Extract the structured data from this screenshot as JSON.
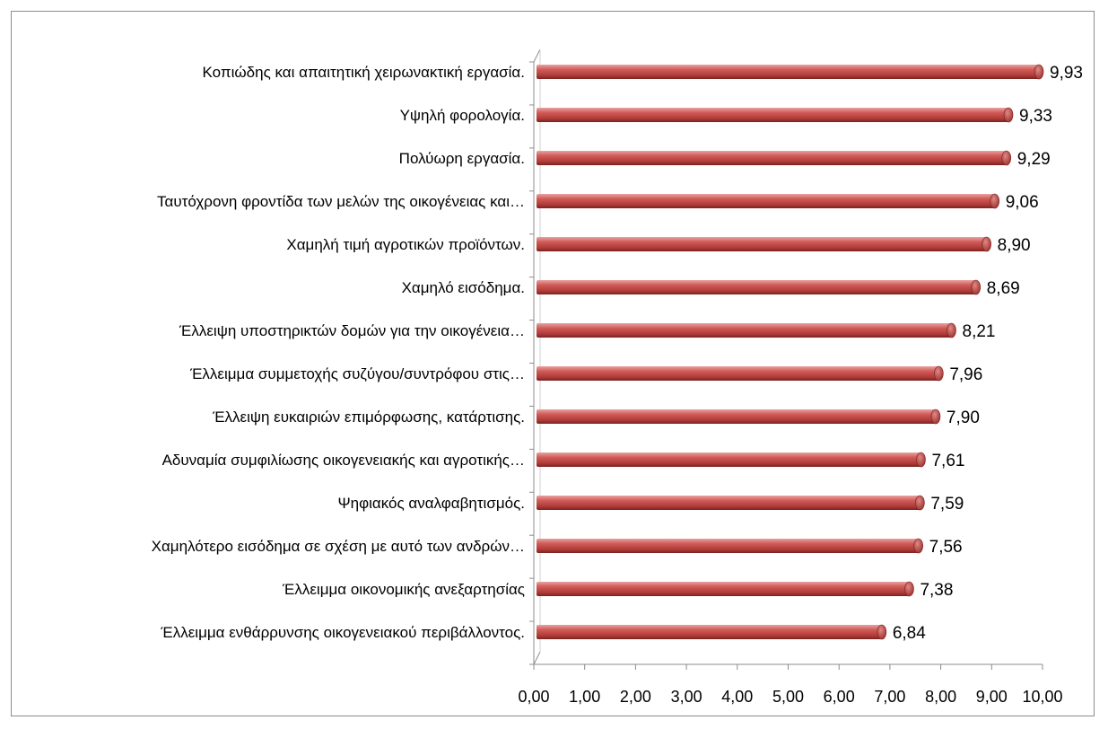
{
  "chart_data": {
    "type": "bar",
    "orientation": "horizontal",
    "style": "3d-cylinder",
    "bar_color": "#c0504d",
    "categories": [
      "Κοπιώδης και απαιτητική χειρωνακτική εργασία.",
      "Υψηλή φορολογία.",
      "Πολύωρη εργασία.",
      "Ταυτόχρονη φροντίδα των μελών της οικογένειας και…",
      "Χαμηλή τιμή αγροτικών προϊόντων.",
      "Χαμηλό εισόδημα.",
      "Έλλειψη υποστηρικτών δομών για την οικογένεια…",
      "Έλλειμμα συμμετοχής συζύγου/συντρόφου στις…",
      "Έλλειψη ευκαιριών επιμόρφωσης, κατάρτισης.",
      "Αδυναμία συμφιλίωσης οικογενειακής και αγροτικής…",
      "Ψηφιακός αναλφαβητισμός.",
      "Χαμηλότερο εισόδημα σε σχέση με αυτό των ανδρών…",
      "Έλλειμμα οικονομικής ανεξαρτησίας",
      "Έλλειμμα  ενθάρρυνσης οικογενειακού περιβάλλοντος."
    ],
    "values": [
      9.93,
      9.33,
      9.29,
      9.06,
      8.9,
      8.69,
      8.21,
      7.96,
      7.9,
      7.61,
      7.59,
      7.56,
      7.38,
      6.84
    ],
    "value_labels": [
      "9,93",
      "9,33",
      "9,29",
      "9,06",
      "8,90",
      "8,69",
      "8,21",
      "7,96",
      "7,90",
      "7,61",
      "7,59",
      "7,56",
      "7,38",
      "6,84"
    ],
    "xlim": [
      0,
      10
    ],
    "x_ticks": [
      "0,00",
      "1,00",
      "2,00",
      "3,00",
      "4,00",
      "5,00",
      "6,00",
      "7,00",
      "8,00",
      "9,00",
      "10,00"
    ],
    "title": "",
    "xlabel": "",
    "ylabel": "",
    "grid": false,
    "legend": "none"
  }
}
